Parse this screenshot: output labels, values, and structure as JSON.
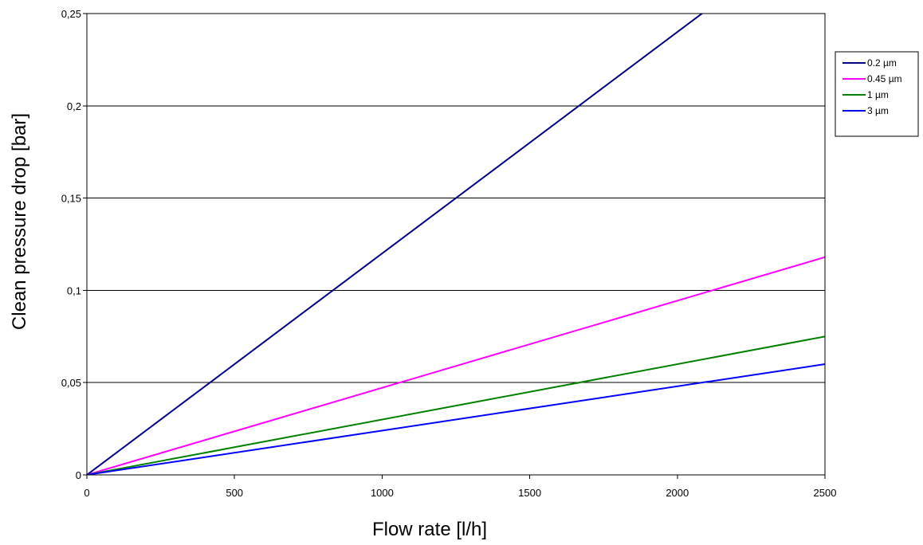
{
  "chart_data": {
    "type": "line",
    "xlabel": "Flow rate [l/h]",
    "ylabel": "Clean pressure drop [bar]",
    "xlim": [
      0,
      2500
    ],
    "ylim": [
      0,
      0.25
    ],
    "x_ticks": [
      0,
      500,
      1000,
      1500,
      2000,
      2500
    ],
    "x_tick_labels": [
      "0",
      "500",
      "1000",
      "1500",
      "2000",
      "2500"
    ],
    "y_ticks": [
      0,
      0.05,
      0.1,
      0.15,
      0.2,
      0.25
    ],
    "y_tick_labels": [
      "0",
      "0,05",
      "0,1",
      "0,15",
      "0,2",
      "0,25"
    ],
    "grid": "horizontal major gridlines",
    "legend_position": "right",
    "series": [
      {
        "name": "0.2 µm",
        "color": "#000080",
        "x": [
          0,
          2500
        ],
        "y": [
          0,
          0.3
        ]
      },
      {
        "name": "0.45 µm",
        "color": "#ff00ff",
        "x": [
          0,
          2500
        ],
        "y": [
          0,
          0.118
        ]
      },
      {
        "name": "1 µm",
        "color": "#008000",
        "x": [
          0,
          2500
        ],
        "y": [
          0,
          0.075
        ]
      },
      {
        "name": "3 µm",
        "color": "#0000ff",
        "x": [
          0,
          2500
        ],
        "y": [
          0,
          0.06
        ]
      }
    ]
  }
}
